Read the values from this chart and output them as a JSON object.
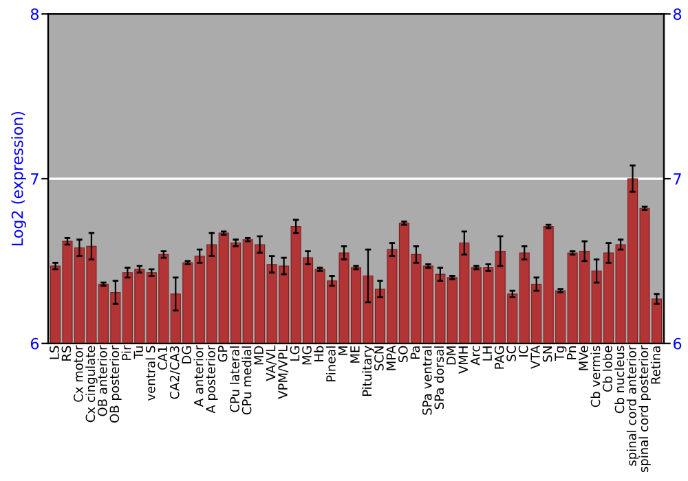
{
  "chart_data": {
    "type": "bar",
    "ylabel": "Log2 (expression)",
    "categories": [
      "LS",
      "RS",
      "Cx motor",
      "Cx cingulate",
      "OB anterior",
      "OB posterior",
      "Pir",
      "Tu",
      "ventral S",
      "CA1",
      "CA2/CA3",
      "DG",
      "A anterior",
      "A posterior",
      "GP",
      "CPu lateral",
      "CPu medial",
      "MD",
      "VA/VL",
      "VPM/VPL",
      "LG",
      "MG",
      "Hb",
      "Pineal",
      "M",
      "ME",
      "Pituitary",
      "SCN",
      "MPA",
      "SO",
      "Pa",
      "SPa ventral",
      "SPa dorsal",
      "DM",
      "VMH",
      "Arc",
      "LH",
      "PAG",
      "SC",
      "IC",
      "VTA",
      "SN",
      "Tg",
      "Pn",
      "MVe",
      "Cb vermis",
      "Cb lobe",
      "Cb nucleus",
      "spinal cord anterior",
      "spinal cord posterior",
      "Retina"
    ],
    "values": [
      6.47,
      6.62,
      6.58,
      6.59,
      6.36,
      6.31,
      6.43,
      6.45,
      6.43,
      6.54,
      6.3,
      6.49,
      6.53,
      6.6,
      6.67,
      6.61,
      6.63,
      6.6,
      6.48,
      6.47,
      6.71,
      6.52,
      6.45,
      6.38,
      6.55,
      6.46,
      6.41,
      6.33,
      6.57,
      6.73,
      6.54,
      6.47,
      6.42,
      6.4,
      6.61,
      6.46,
      6.46,
      6.56,
      6.3,
      6.55,
      6.36,
      6.71,
      6.32,
      6.55,
      6.56,
      6.44,
      6.55,
      6.6,
      7.0,
      6.82,
      6.27
    ],
    "errors": [
      0.02,
      0.02,
      0.05,
      0.08,
      0.01,
      0.07,
      0.03,
      0.02,
      0.02,
      0.02,
      0.1,
      0.01,
      0.04,
      0.07,
      0.01,
      0.02,
      0.01,
      0.05,
      0.05,
      0.05,
      0.04,
      0.04,
      0.01,
      0.03,
      0.04,
      0.01,
      0.16,
      0.05,
      0.04,
      0.01,
      0.05,
      0.01,
      0.04,
      0.01,
      0.07,
      0.01,
      0.02,
      0.09,
      0.02,
      0.04,
      0.04,
      0.01,
      0.01,
      0.01,
      0.06,
      0.07,
      0.06,
      0.03,
      0.08,
      0.01,
      0.03
    ],
    "color": "#b33434",
    "ylim": [
      6,
      8
    ],
    "yticks": [
      6,
      7,
      8
    ],
    "y2lim": [
      6,
      8
    ],
    "y2ticks": [
      6,
      7,
      8
    ],
    "grid": "y"
  }
}
